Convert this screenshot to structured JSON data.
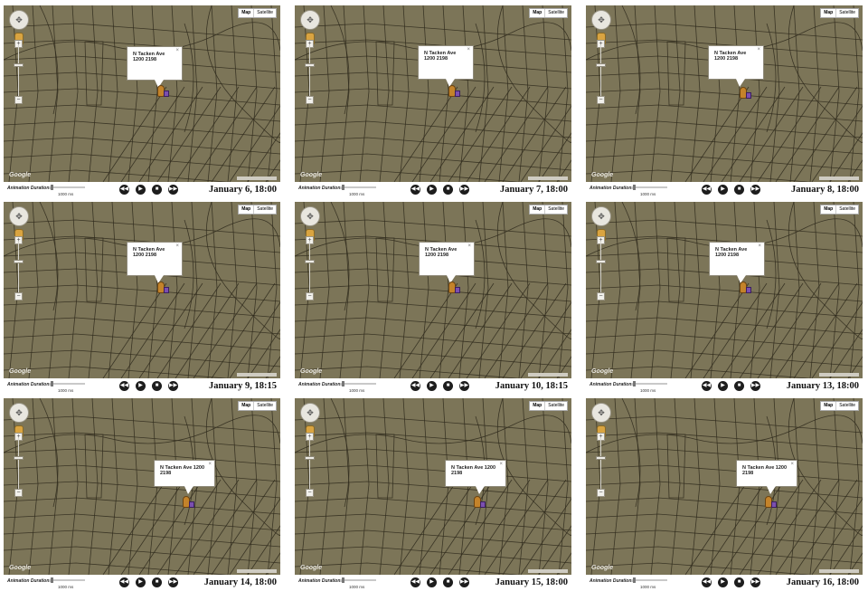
{
  "common": {
    "map_type_labels": [
      "Map",
      "Satellite"
    ],
    "google_label": "Google",
    "callout_text": "N Tacken Ave 1200 2198",
    "callout_close": "×",
    "animation_label": "Animation Duration:",
    "duration_label": "1000 ms",
    "playback_icons": [
      "rewind-icon",
      "play-icon",
      "stop-icon",
      "fast-forward-icon"
    ],
    "colors": {
      "map_background": "#7c7558",
      "street": "#2f2a1c",
      "marker_person": "#c4832a",
      "marker_box": "#7b4fb0"
    }
  },
  "panels": [
    {
      "date": "January 6, 18:00"
    },
    {
      "date": "January 7, 18:00"
    },
    {
      "date": "January 8, 18:00"
    },
    {
      "date": "January 9, 18:15"
    },
    {
      "date": "January 10, 18:15"
    },
    {
      "date": "January 13, 18:00"
    },
    {
      "date": "January 14, 18:00"
    },
    {
      "date": "January 15, 18:00"
    },
    {
      "date": "January 16, 18:00"
    }
  ]
}
